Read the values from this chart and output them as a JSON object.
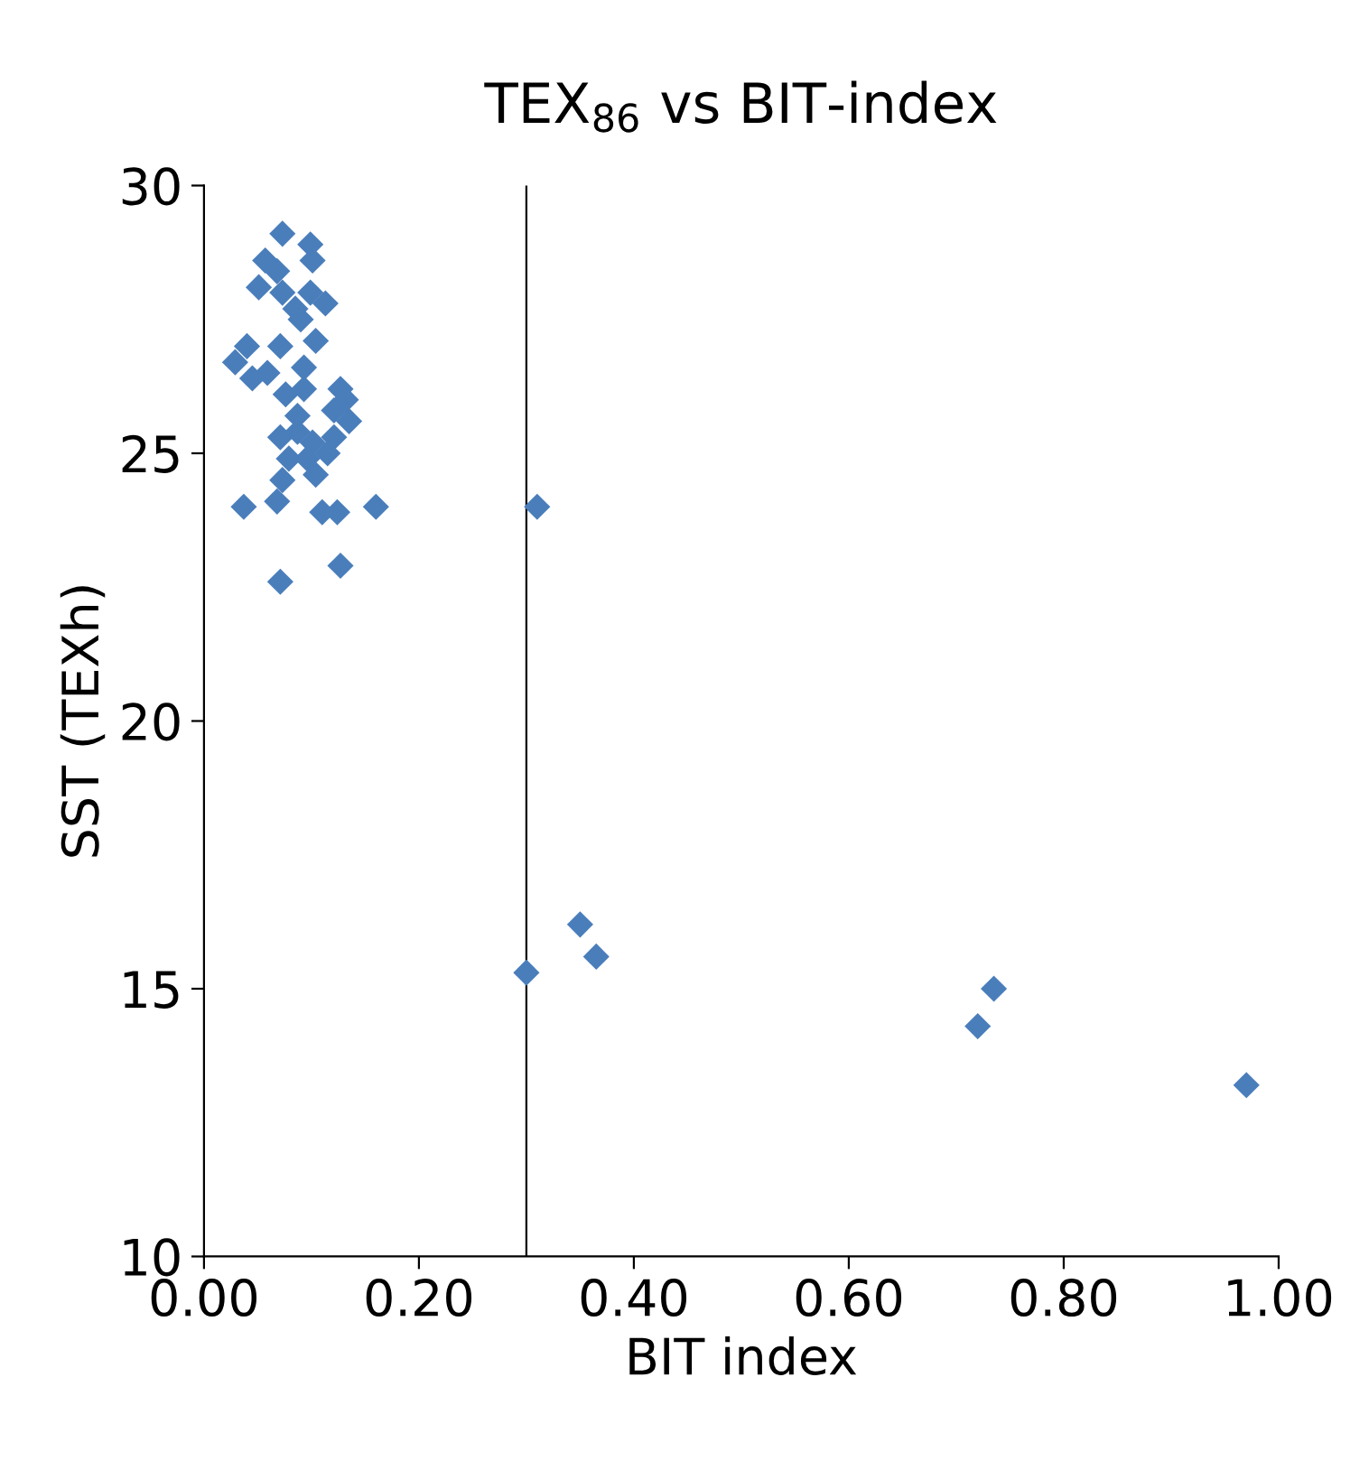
{
  "chart_data": {
    "type": "scatter",
    "title": "TEX$_{86}$ vs BIT-index",
    "xlabel": "BIT index",
    "ylabel": "SST (TEXh)",
    "series": [
      {
        "color": "#4a7ebb",
        "x": [
          0.073,
          0.099,
          0.101,
          0.057,
          0.068,
          0.051,
          0.073,
          0.099,
          0.085,
          0.113,
          0.09,
          0.104,
          0.04,
          0.071,
          0.029,
          0.045,
          0.059,
          0.093,
          0.127,
          0.132,
          0.076,
          0.093,
          0.087,
          0.121,
          0.135,
          0.071,
          0.087,
          0.101,
          0.121,
          0.079,
          0.096,
          0.115,
          0.104,
          0.073,
          0.068,
          0.037,
          0.11,
          0.124,
          0.16,
          0.127,
          0.071,
          0.31,
          0.3,
          0.35,
          0.365,
          0.72,
          0.735,
          0.97
        ],
        "values": [
          29.1,
          28.9,
          28.6,
          28.6,
          28.4,
          28.1,
          28.0,
          28.0,
          27.7,
          27.8,
          27.5,
          27.1,
          27.0,
          27.0,
          26.7,
          26.4,
          26.5,
          26.6,
          26.2,
          26.0,
          26.1,
          26.2,
          25.7,
          25.8,
          25.6,
          25.3,
          25.4,
          25.2,
          25.3,
          24.9,
          24.9,
          25.0,
          24.6,
          24.5,
          24.1,
          24.0,
          23.9,
          23.9,
          24.0,
          22.9,
          22.6,
          24.0,
          15.3,
          16.2,
          15.6,
          14.3,
          15.0,
          13.2
        ]
      }
    ],
    "xlim": [
      0,
      1.0
    ],
    "xticks": [
      {
        "value": 0,
        "label": "0.00"
      },
      {
        "value": 0.2,
        "label": "0.20"
      },
      {
        "value": 0.4,
        "label": "0.40"
      },
      {
        "value": 0.6,
        "label": "0.60"
      },
      {
        "value": 0.8,
        "label": "0.80"
      },
      {
        "value": 1.0,
        "label": "1.00"
      }
    ],
    "ylim": [
      10,
      30
    ],
    "yticks": [
      10,
      15,
      20,
      25,
      30
    ],
    "ref_lines": [
      {
        "axis": "x",
        "value": 0.3,
        "color": "#000000"
      }
    ],
    "marker": "diamond",
    "grid": false,
    "legend": false
  }
}
